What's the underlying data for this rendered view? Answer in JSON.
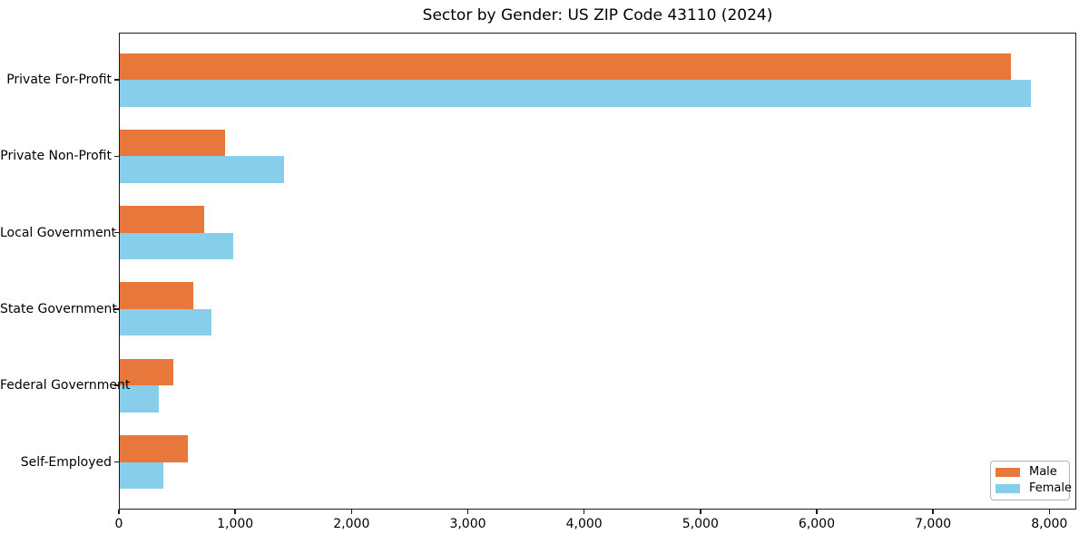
{
  "chart_data": {
    "type": "bar",
    "orientation": "horizontal",
    "title": "Sector by Gender: US ZIP Code 43110 (2024)",
    "categories": [
      "Private For-Profit",
      "Private Non-Profit",
      "Local Government",
      "State Government",
      "Federal Government",
      "Self-Employed"
    ],
    "series": [
      {
        "name": "Male",
        "color": "#E8773B",
        "values": [
          7670,
          915,
          730,
          640,
          470,
          595
        ]
      },
      {
        "name": "Female",
        "color": "#87CEEB",
        "values": [
          7840,
          1420,
          980,
          795,
          345,
          380
        ]
      }
    ],
    "x_ticks": [
      {
        "value": 0,
        "label": "0"
      },
      {
        "value": 1000,
        "label": "1,000"
      },
      {
        "value": 2000,
        "label": "2,000"
      },
      {
        "value": 3000,
        "label": "3,000"
      },
      {
        "value": 4000,
        "label": "4,000"
      },
      {
        "value": 5000,
        "label": "5,000"
      },
      {
        "value": 6000,
        "label": "6,000"
      },
      {
        "value": 7000,
        "label": "7,000"
      },
      {
        "value": 8000,
        "label": "8,000"
      }
    ],
    "xlim": [
      0,
      8232
    ],
    "xlabel": "",
    "ylabel": "",
    "grid": false,
    "legend": {
      "position": "lower right",
      "entries": [
        "Male",
        "Female"
      ]
    }
  }
}
